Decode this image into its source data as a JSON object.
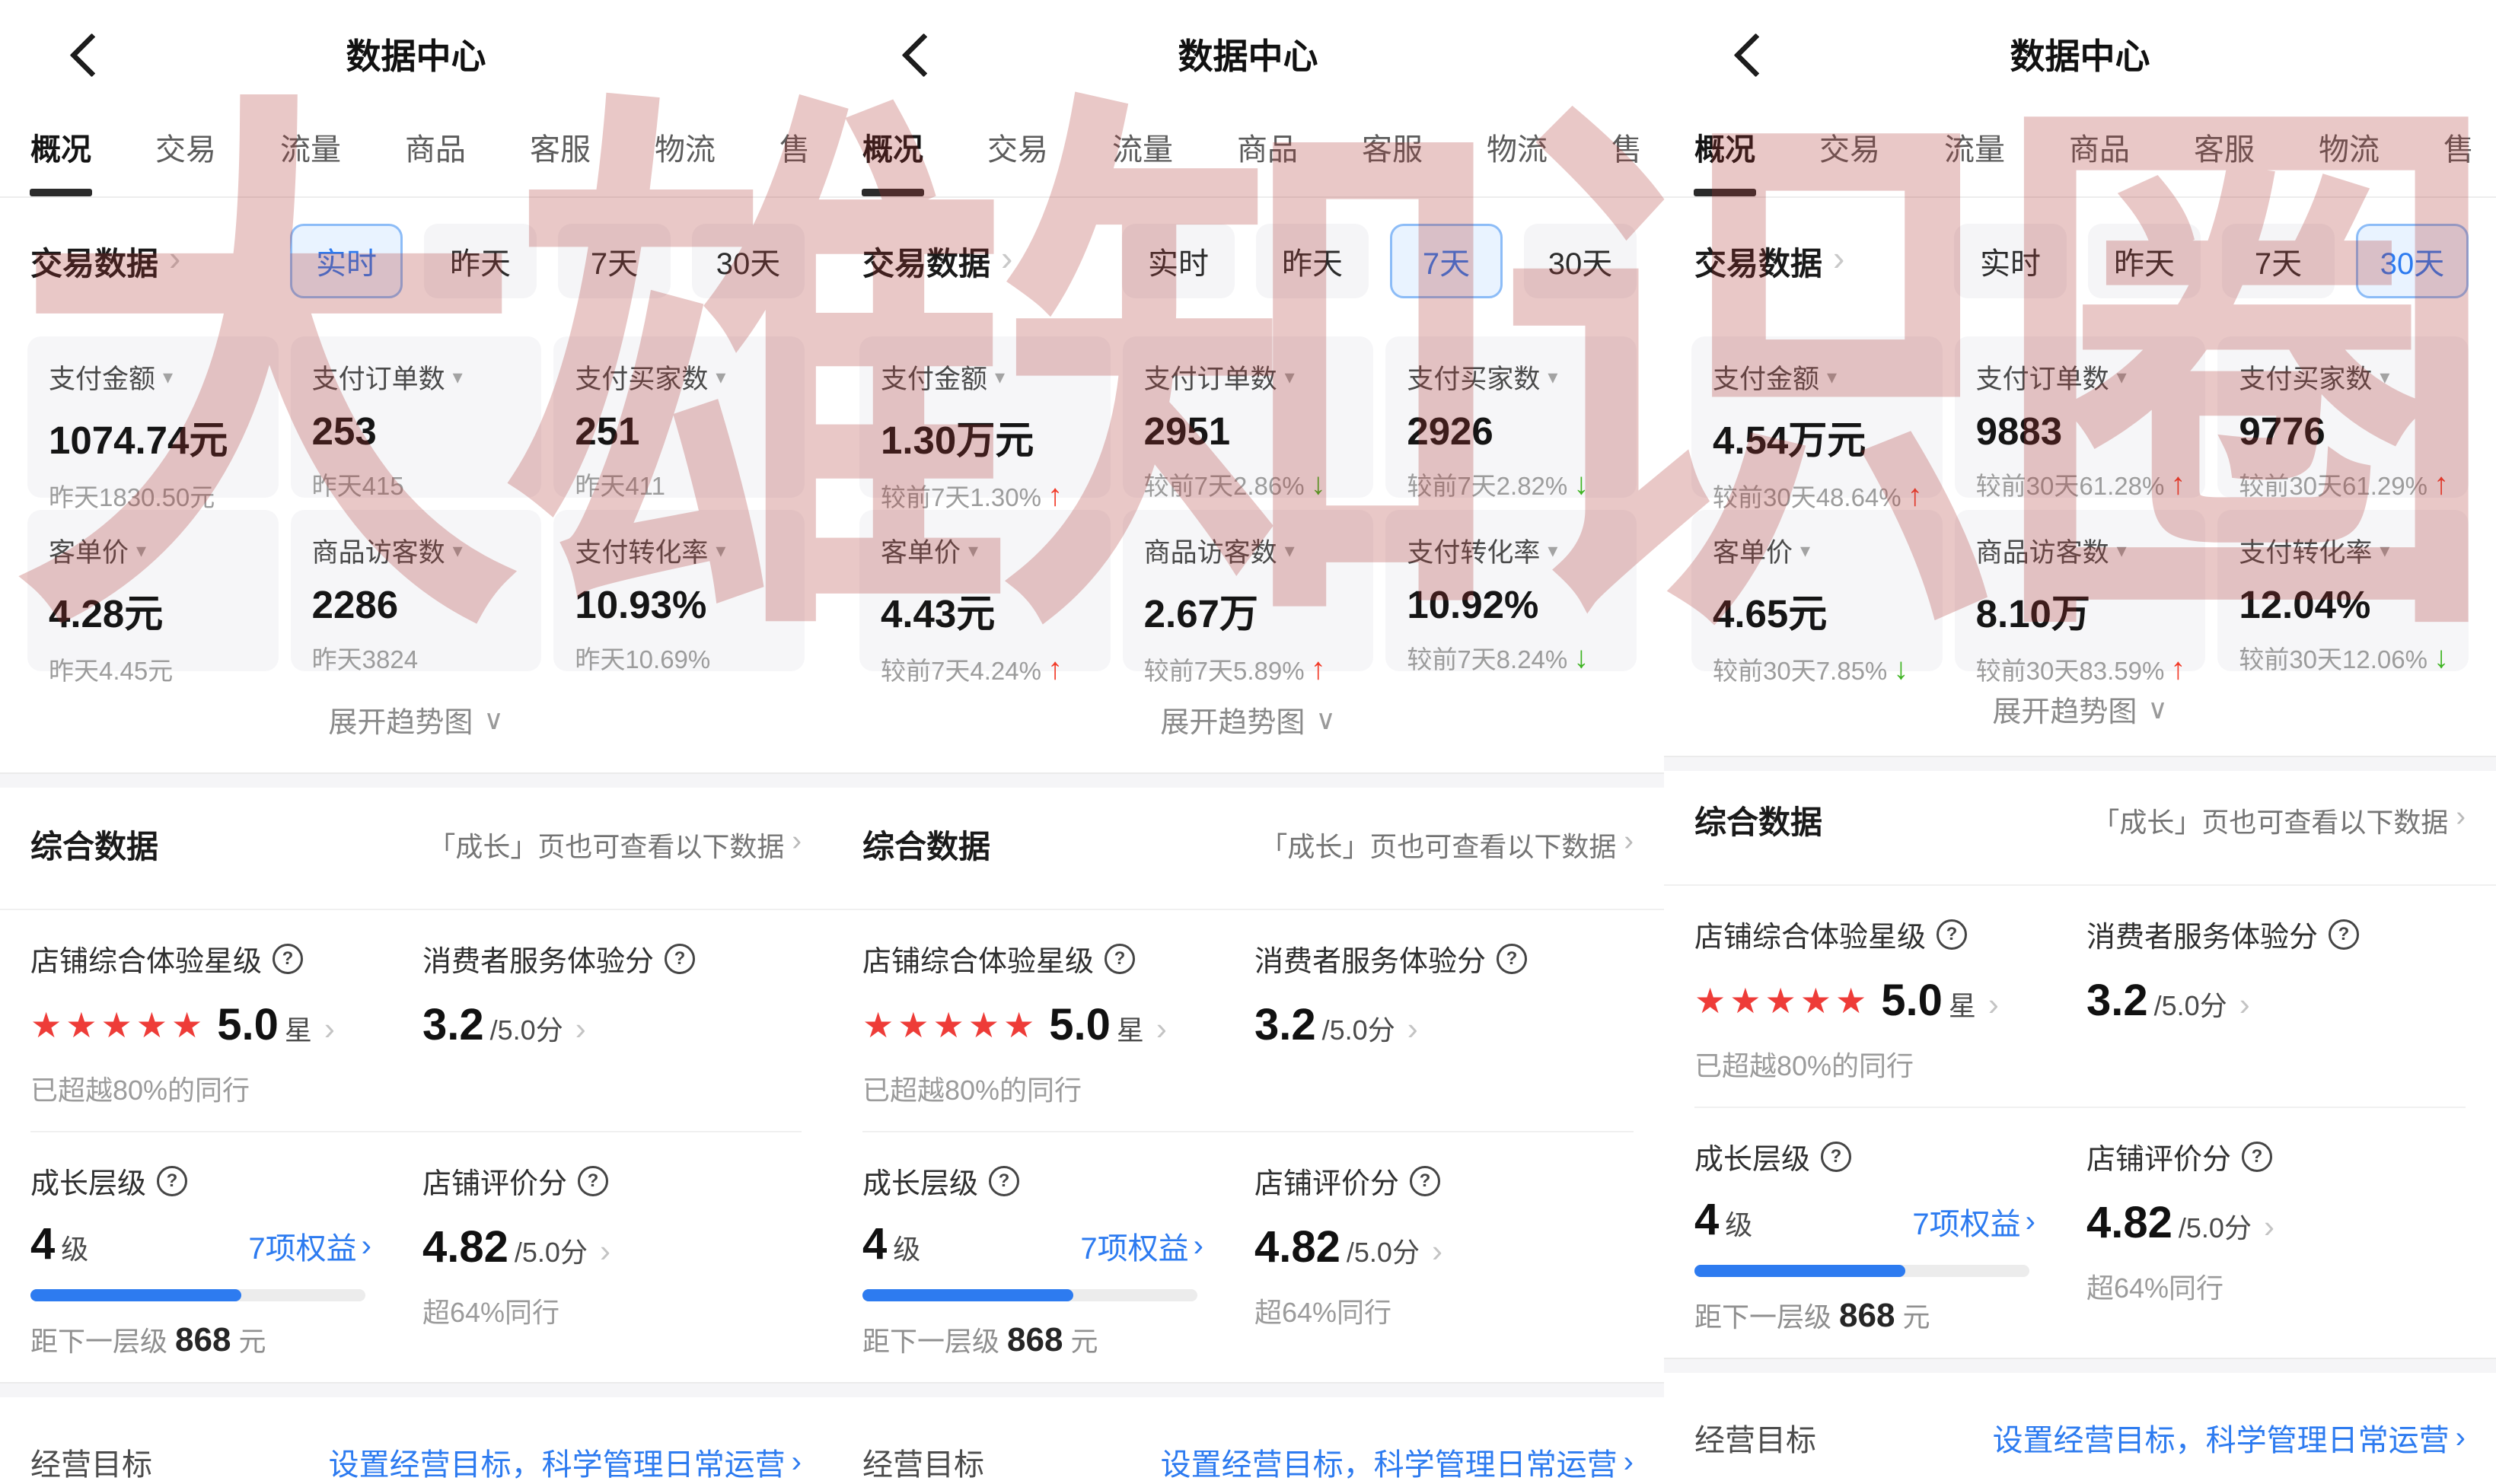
{
  "watermark": "大雄知识圈",
  "icons": {
    "chevron_right": "›",
    "caret_down": "▾",
    "expand_caret": "∨",
    "help": "?",
    "arrow_up": "↑",
    "arrow_down": "↓"
  },
  "header": {
    "title": "数据中心"
  },
  "tabs": [
    {
      "label": "概况"
    },
    {
      "label": "交易"
    },
    {
      "label": "流量"
    },
    {
      "label": "商品"
    },
    {
      "label": "客服"
    },
    {
      "label": "物流"
    },
    {
      "label": "售"
    }
  ],
  "trade": {
    "title": "交易数据",
    "filters": [
      {
        "label": "实时"
      },
      {
        "label": "昨天"
      },
      {
        "label": "7天"
      },
      {
        "label": "30天"
      }
    ]
  },
  "panels": [
    {
      "selected_filter": "实时",
      "metrics": [
        {
          "label": "支付金额",
          "value": "1074.74元",
          "sub": "昨天1830.50元"
        },
        {
          "label": "支付订单数",
          "value": "253",
          "sub": "昨天415"
        },
        {
          "label": "支付买家数",
          "value": "251",
          "sub": "昨天411"
        },
        {
          "label": "客单价",
          "value": "4.28元",
          "sub": "昨天4.45元"
        },
        {
          "label": "商品访客数",
          "value": "2286",
          "sub": "昨天3824"
        },
        {
          "label": "支付转化率",
          "value": "10.93%",
          "sub": "昨天10.69%"
        }
      ]
    },
    {
      "selected_filter": "7天",
      "metrics": [
        {
          "label": "支付金额",
          "value": "1.30万元",
          "sub": "较前7天1.30%",
          "arrow": "up"
        },
        {
          "label": "支付订单数",
          "value": "2951",
          "sub": "较前7天2.86%",
          "arrow": "down"
        },
        {
          "label": "支付买家数",
          "value": "2926",
          "sub": "较前7天2.82%",
          "arrow": "down"
        },
        {
          "label": "客单价",
          "value": "4.43元",
          "sub": "较前7天4.24%",
          "arrow": "up"
        },
        {
          "label": "商品访客数",
          "value": "2.67万",
          "sub": "较前7天5.89%",
          "arrow": "up"
        },
        {
          "label": "支付转化率",
          "value": "10.92%",
          "sub": "较前7天8.24%",
          "arrow": "down"
        }
      ]
    },
    {
      "selected_filter": "30天",
      "metrics": [
        {
          "label": "支付金额",
          "value": "4.54万元",
          "sub": "较前30天48.64%",
          "arrow": "up"
        },
        {
          "label": "支付订单数",
          "value": "9883",
          "sub": "较前30天61.28%",
          "arrow": "up"
        },
        {
          "label": "支付买家数",
          "value": "9776",
          "sub": "较前30天61.29%",
          "arrow": "up"
        },
        {
          "label": "客单价",
          "value": "4.65元",
          "sub": "较前30天7.85%",
          "arrow": "down"
        },
        {
          "label": "商品访客数",
          "value": "8.10万",
          "sub": "较前30天83.59%",
          "arrow": "up"
        },
        {
          "label": "支付转化率",
          "value": "12.04%",
          "sub": "较前30天12.06%",
          "arrow": "down"
        }
      ]
    }
  ],
  "expand_trend_label": "展开趋势图",
  "comp": {
    "title": "综合数据",
    "growth_note": "「成长」页也可查看以下数据",
    "star_block": {
      "label": "店铺综合体验星级",
      "stars": "★★★★★",
      "score": "5.0",
      "unit": "星",
      "note": "已超越80%的同行"
    },
    "service_block": {
      "label": "消费者服务体验分",
      "score": "3.2",
      "denom": "/5.0分"
    },
    "growth_block": {
      "label": "成长层级",
      "level": "4",
      "level_unit": "级",
      "benefits": "7项权益",
      "progress_style": "width:63%",
      "next_prefix": "距下一层级",
      "next_value": "868",
      "next_suffix": "元"
    },
    "rating_block": {
      "label": "店铺评价分",
      "score": "4.82",
      "denom": "/5.0分",
      "note": "超64%同行"
    }
  },
  "goal": {
    "label": "经营目标",
    "link": "设置经营目标，科学管理日常运营"
  }
}
